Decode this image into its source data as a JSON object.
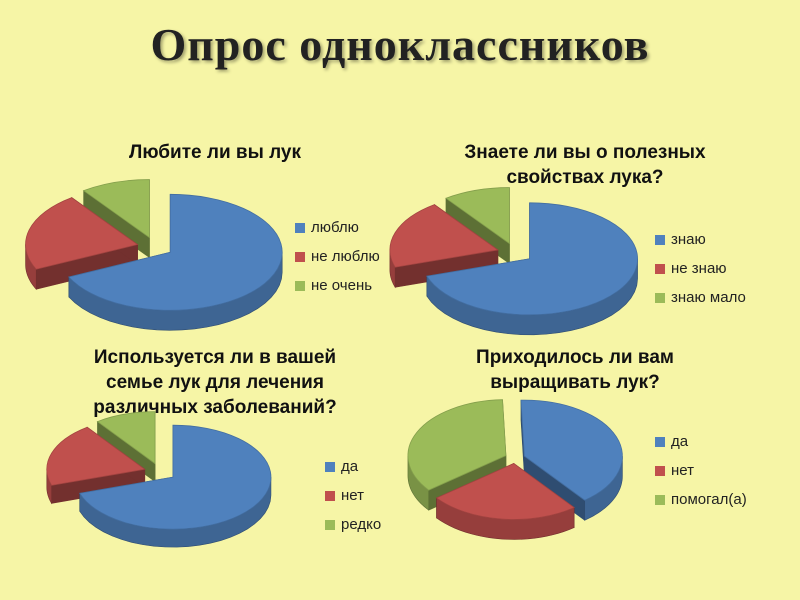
{
  "slide": {
    "title": "Опрос  одноклассников"
  },
  "colors": {
    "blue": "#4f81bd",
    "red": "#c0504d",
    "green": "#9bbb59"
  },
  "chart_data": [
    {
      "type": "pie",
      "title": "Любите ли вы лук",
      "categories": [
        "люблю",
        "не люблю",
        "не очень"
      ],
      "values": [
        68,
        22,
        10
      ],
      "legend_position": "right",
      "exploded": true
    },
    {
      "type": "pie",
      "title": "Знаете ли вы о полезных\nсвойствах лука?",
      "categories": [
        "знаю",
        "не знаю",
        "знаю мало"
      ],
      "values": [
        70,
        20,
        10
      ],
      "legend_position": "right",
      "exploded": true
    },
    {
      "type": "pie",
      "title": "Используется ли в вашей\nсемье лук для лечения\nразличных заболеваний?",
      "categories": [
        "да",
        "нет",
        "редко"
      ],
      "values": [
        70,
        20,
        10
      ],
      "legend_position": "right",
      "exploded": true
    },
    {
      "type": "pie",
      "title": "Приходилось ли вам\nвыращивать лук?",
      "categories": [
        "да",
        "нет",
        "помогал(а)"
      ],
      "values": [
        40,
        25,
        35
      ],
      "legend_position": "right",
      "exploded": true
    }
  ]
}
